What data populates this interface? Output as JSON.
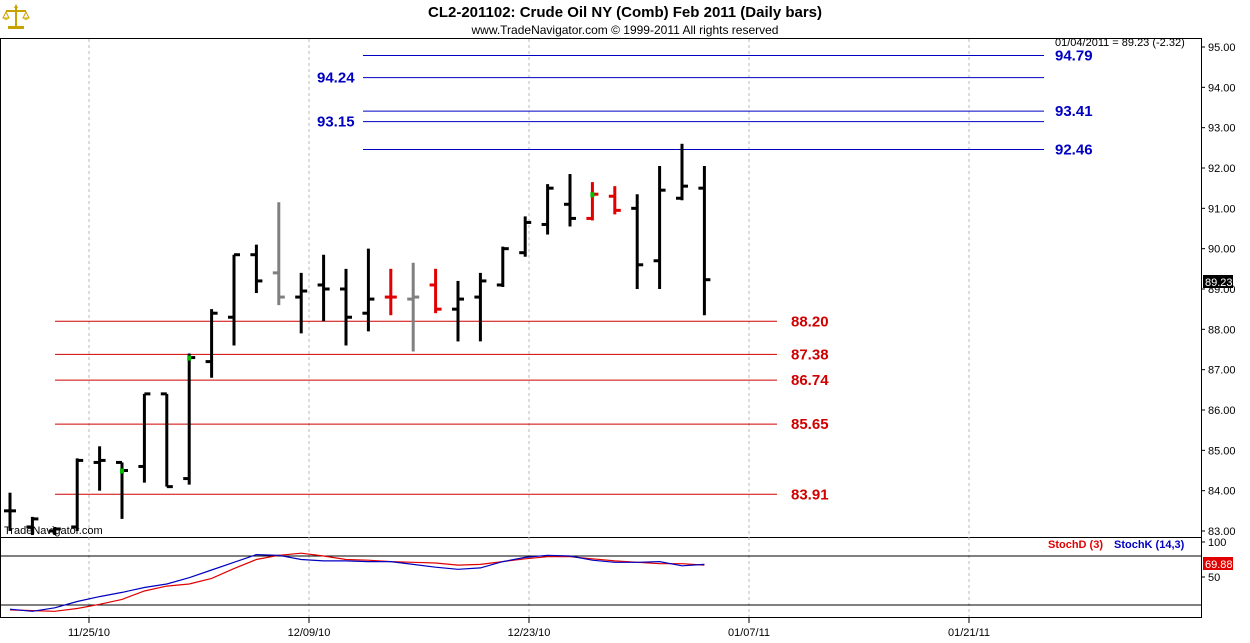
{
  "header": {
    "title": "CL2-201102:  Crude Oil NY (Comb) Feb 2011  (Daily bars)",
    "subtitle": "www.TradeNavigator.com © 1999-2011 All rights reserved"
  },
  "info_line": "01/04/2011 = 89.23 (-2.32)",
  "watermark": "TradeNavigator.com",
  "logo_icon": "balance-scale-icon",
  "colors": {
    "up_bar": "#000000",
    "neutral_bar": "#808080",
    "highlight_bar": "#e00000",
    "resistance_line": "#0000c0",
    "support_line": "#d00000",
    "stoch_d": "#e00000",
    "stoch_k": "#0000c0",
    "signal_mark": "#00c000"
  },
  "chart_data": [
    {
      "type": "ohlc",
      "title": "CL2-201102:  Crude Oil NY (Comb) Feb 2011  (Daily bars)",
      "ylim": [
        82.8,
        95.2
      ],
      "y_ticks": [
        "83.00",
        "84.00",
        "85.00",
        "86.00",
        "87.00",
        "88.00",
        "89.00",
        "90.00",
        "91.00",
        "92.00",
        "93.00",
        "94.00",
        "95.00"
      ],
      "x_ticks": [
        "11/25/10",
        "12/09/10",
        "12/23/10",
        "01/07/11",
        "01/21/11"
      ],
      "current_price": "89.23",
      "bars": [
        {
          "o": 83.5,
          "h": 83.95,
          "l": 83.0,
          "c": 83.5,
          "color": "black"
        },
        {
          "o": 83.1,
          "h": 83.35,
          "l": 82.9,
          "c": 83.3,
          "color": "black"
        },
        {
          "o": 83.0,
          "h": 83.1,
          "l": 82.9,
          "c": 83.05,
          "color": "black"
        },
        {
          "o": 83.1,
          "h": 84.8,
          "l": 83.0,
          "c": 84.75,
          "color": "black"
        },
        {
          "o": 84.7,
          "h": 85.1,
          "l": 84.0,
          "c": 84.75,
          "color": "black"
        },
        {
          "o": 84.7,
          "h": 84.7,
          "l": 83.3,
          "c": 84.5,
          "color": "black",
          "mark": "green"
        },
        {
          "o": 84.6,
          "h": 86.4,
          "l": 84.2,
          "c": 86.4,
          "color": "black"
        },
        {
          "o": 86.4,
          "h": 86.4,
          "l": 84.1,
          "c": 84.1,
          "color": "black"
        },
        {
          "o": 84.3,
          "h": 87.4,
          "l": 84.15,
          "c": 87.3,
          "color": "black",
          "mark": "green"
        },
        {
          "o": 87.2,
          "h": 88.5,
          "l": 86.8,
          "c": 88.4,
          "color": "black"
        },
        {
          "o": 88.3,
          "h": 89.85,
          "l": 87.6,
          "c": 89.85,
          "color": "black"
        },
        {
          "o": 89.85,
          "h": 90.1,
          "l": 88.9,
          "c": 89.2,
          "color": "black"
        },
        {
          "o": 89.4,
          "h": 91.15,
          "l": 88.6,
          "c": 88.8,
          "color": "gray"
        },
        {
          "o": 88.8,
          "h": 89.4,
          "l": 87.9,
          "c": 88.95,
          "color": "black"
        },
        {
          "o": 89.1,
          "h": 89.85,
          "l": 88.2,
          "c": 89.0,
          "color": "black"
        },
        {
          "o": 89.0,
          "h": 89.5,
          "l": 87.6,
          "c": 88.3,
          "color": "black"
        },
        {
          "o": 88.4,
          "h": 90.0,
          "l": 87.95,
          "c": 88.75,
          "color": "black"
        },
        {
          "o": 88.8,
          "h": 89.5,
          "l": 88.35,
          "c": 88.8,
          "color": "red"
        },
        {
          "o": 88.75,
          "h": 89.65,
          "l": 87.45,
          "c": 88.8,
          "color": "gray"
        },
        {
          "o": 89.1,
          "h": 89.5,
          "l": 88.4,
          "c": 88.5,
          "color": "red"
        },
        {
          "o": 88.5,
          "h": 89.2,
          "l": 87.7,
          "c": 88.75,
          "color": "black"
        },
        {
          "o": 88.8,
          "h": 89.4,
          "l": 87.7,
          "c": 89.2,
          "color": "black"
        },
        {
          "o": 89.1,
          "h": 90.05,
          "l": 89.05,
          "c": 90.0,
          "color": "black"
        },
        {
          "o": 89.9,
          "h": 90.8,
          "l": 89.8,
          "c": 90.65,
          "color": "black"
        },
        {
          "o": 90.6,
          "h": 91.6,
          "l": 90.35,
          "c": 91.5,
          "color": "black"
        },
        {
          "o": 91.1,
          "h": 91.85,
          "l": 90.55,
          "c": 90.75,
          "color": "black"
        },
        {
          "o": 90.75,
          "h": 91.65,
          "l": 90.7,
          "c": 91.35,
          "color": "red",
          "mark": "green"
        },
        {
          "o": 91.3,
          "h": 91.55,
          "l": 90.85,
          "c": 90.95,
          "color": "red"
        },
        {
          "o": 91.0,
          "h": 91.35,
          "l": 89.0,
          "c": 89.6,
          "color": "black"
        },
        {
          "o": 89.7,
          "h": 92.05,
          "l": 89.0,
          "c": 91.45,
          "color": "black"
        },
        {
          "o": 91.25,
          "h": 92.6,
          "l": 91.2,
          "c": 91.55,
          "color": "black"
        },
        {
          "o": 91.5,
          "h": 92.05,
          "l": 88.35,
          "c": 89.23,
          "color": "black"
        }
      ],
      "levels": [
        {
          "value": 94.79,
          "label": "94.79",
          "kind": "resistance"
        },
        {
          "value": 94.24,
          "label": "94.24",
          "kind": "resistance"
        },
        {
          "value": 93.41,
          "label": "93.41",
          "kind": "resistance"
        },
        {
          "value": 93.15,
          "label": "93.15",
          "kind": "resistance"
        },
        {
          "value": 92.46,
          "label": "92.46",
          "kind": "resistance"
        },
        {
          "value": 88.2,
          "label": "88.20",
          "kind": "support"
        },
        {
          "value": 87.38,
          "label": "87.38",
          "kind": "support"
        },
        {
          "value": 86.74,
          "label": "86.74",
          "kind": "support"
        },
        {
          "value": 85.65,
          "label": "85.65",
          "kind": "support"
        },
        {
          "value": 83.91,
          "label": "83.91",
          "kind": "support"
        }
      ]
    },
    {
      "type": "line",
      "ylim": [
        0,
        100
      ],
      "y_ticks": [
        "100",
        "50"
      ],
      "current_value": "69.88",
      "series": [
        {
          "name": "StochD (3)",
          "values": [
            3,
            2,
            1,
            5,
            11,
            18,
            30,
            37,
            40,
            48,
            62,
            75,
            81,
            84,
            80,
            75,
            74,
            72,
            71,
            70,
            67,
            68,
            72,
            76,
            79,
            79,
            76,
            73,
            71,
            69,
            69,
            67
          ]
        },
        {
          "name": "StochK (14,3)",
          "values": [
            4,
            1,
            6,
            15,
            22,
            28,
            35,
            40,
            49,
            60,
            71,
            82,
            81,
            75,
            73,
            73,
            72,
            72,
            68,
            64,
            61,
            63,
            72,
            78,
            81,
            80,
            74,
            71,
            71,
            72,
            66,
            68
          ]
        }
      ]
    }
  ]
}
